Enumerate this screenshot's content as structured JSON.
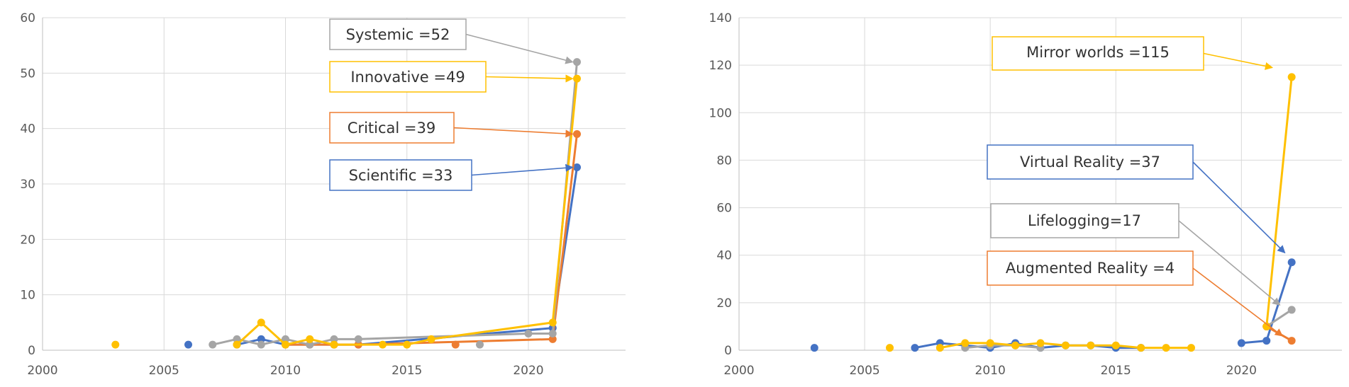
{
  "chart_data": [
    {
      "type": "line",
      "xlim": [
        2000,
        2024
      ],
      "ylim": [
        0,
        60
      ],
      "xticks": [
        "2000",
        "2005",
        "2010",
        "2015",
        "2020"
      ],
      "yticks": [
        "0",
        "10",
        "20",
        "30",
        "40",
        "50",
        "60"
      ],
      "grid": true,
      "colors": {
        "blue": "#4472c4",
        "orange": "#ed7d31",
        "gray": "#a5a5a5",
        "yellow": "#ffc000"
      },
      "series": [
        {
          "color": "#4472c4",
          "line": [
            [
              2008,
              1
            ],
            [
              2009,
              2
            ],
            [
              2010,
              1
            ],
            [
              2011,
              1
            ],
            [
              2012,
              1
            ],
            [
              2013,
              1
            ],
            [
              2021,
              4
            ],
            [
              2022,
              33
            ]
          ],
          "isolated": [
            [
              2006,
              1
            ]
          ]
        },
        {
          "color": "#ed7d31",
          "line": [
            [
              2010,
              1
            ],
            [
              2011,
              1
            ],
            [
              2012,
              1
            ],
            [
              2013,
              1
            ],
            [
              2021,
              2
            ],
            [
              2022,
              39
            ]
          ],
          "isolated": [
            [
              2017,
              1
            ]
          ]
        },
        {
          "color": "#a5a5a5",
          "line": [
            [
              2007,
              1
            ],
            [
              2008,
              2
            ],
            [
              2009,
              1
            ],
            [
              2010,
              2
            ],
            [
              2011,
              1
            ],
            [
              2012,
              2
            ],
            [
              2013,
              2
            ],
            [
              2020,
              3
            ],
            [
              2021,
              3
            ],
            [
              2022,
              52
            ]
          ],
          "isolated": [
            [
              2018,
              1
            ]
          ]
        },
        {
          "color": "#ffc000",
          "line": [
            [
              2008,
              1
            ],
            [
              2009,
              5
            ],
            [
              2010,
              1
            ],
            [
              2011,
              2
            ],
            [
              2012,
              1
            ],
            [
              2014,
              1
            ],
            [
              2015,
              1
            ],
            [
              2016,
              2
            ],
            [
              2021,
              5
            ],
            [
              2022,
              49
            ]
          ],
          "isolated": [
            [
              2003,
              1
            ]
          ]
        }
      ],
      "annotations": [
        {
          "text": "Systemic =52",
          "color": "#a5a5a5",
          "target": [
            2022,
            52
          ]
        },
        {
          "text": "Innovative =49",
          "color": "#ffc000",
          "target": [
            2022,
            49
          ]
        },
        {
          "text": "Critical =39",
          "color": "#ed7d31",
          "target": [
            2022,
            39
          ]
        },
        {
          "text": "Scientific =33",
          "color": "#4472c4",
          "target": [
            2022,
            33
          ]
        }
      ]
    },
    {
      "type": "line",
      "xlim": [
        2000,
        2024
      ],
      "ylim": [
        0,
        140
      ],
      "xticks": [
        "2000",
        "2005",
        "2010",
        "2015",
        "2020"
      ],
      "yticks": [
        "0",
        "20",
        "40",
        "60",
        "80",
        "100",
        "120",
        "140"
      ],
      "grid": true,
      "colors": {
        "blue": "#4472c4",
        "orange": "#ed7d31",
        "gray": "#a5a5a5",
        "yellow": "#ffc000"
      },
      "series": [
        {
          "color": "#4472c4",
          "line": [
            [
              2007,
              1
            ],
            [
              2008,
              3
            ],
            [
              2009,
              2
            ],
            [
              2010,
              1
            ],
            [
              2011,
              3
            ],
            [
              2012,
              1
            ],
            [
              2013,
              2
            ],
            [
              2014,
              2
            ],
            [
              2015,
              1
            ],
            [
              2016,
              1
            ]
          ],
          "line2": [
            [
              2020,
              3
            ],
            [
              2021,
              4
            ],
            [
              2022,
              37
            ]
          ],
          "isolated": [
            [
              2003,
              1
            ]
          ]
        },
        {
          "color": "#a5a5a5",
          "line": [
            [
              2009,
              1
            ],
            [
              2010,
              2
            ],
            [
              2011,
              2
            ],
            [
              2012,
              1
            ]
          ],
          "line2": [
            [
              2021,
              10
            ],
            [
              2022,
              17
            ]
          ],
          "isolated": []
        },
        {
          "color": "#ed7d31",
          "line": [
            [
              2021,
              10
            ],
            [
              2022,
              4
            ]
          ],
          "isolated": []
        },
        {
          "color": "#ffc000",
          "line": [
            [
              2008,
              1
            ],
            [
              2009,
              3
            ],
            [
              2010,
              3
            ],
            [
              2011,
              2
            ],
            [
              2012,
              3
            ],
            [
              2013,
              2
            ],
            [
              2014,
              2
            ],
            [
              2015,
              2
            ],
            [
              2016,
              1
            ],
            [
              2017,
              1
            ],
            [
              2018,
              1
            ]
          ],
          "line2": [
            [
              2021,
              10
            ],
            [
              2022,
              115
            ]
          ],
          "isolated": [
            [
              2006,
              1
            ]
          ]
        }
      ],
      "annotations": [
        {
          "text": "Mirror worlds =115",
          "color": "#ffc000",
          "target": [
            2021.4,
            119
          ]
        },
        {
          "text": "Virtual Reality =37",
          "color": "#4472c4",
          "target": [
            2021.9,
            41
          ]
        },
        {
          "text": "Lifelogging=17",
          "color": "#a5a5a5",
          "target": [
            2021.7,
            19
          ]
        },
        {
          "text": "Augmented  Reality =4",
          "color": "#ed7d31",
          "target": [
            2021.8,
            6
          ]
        }
      ]
    }
  ]
}
